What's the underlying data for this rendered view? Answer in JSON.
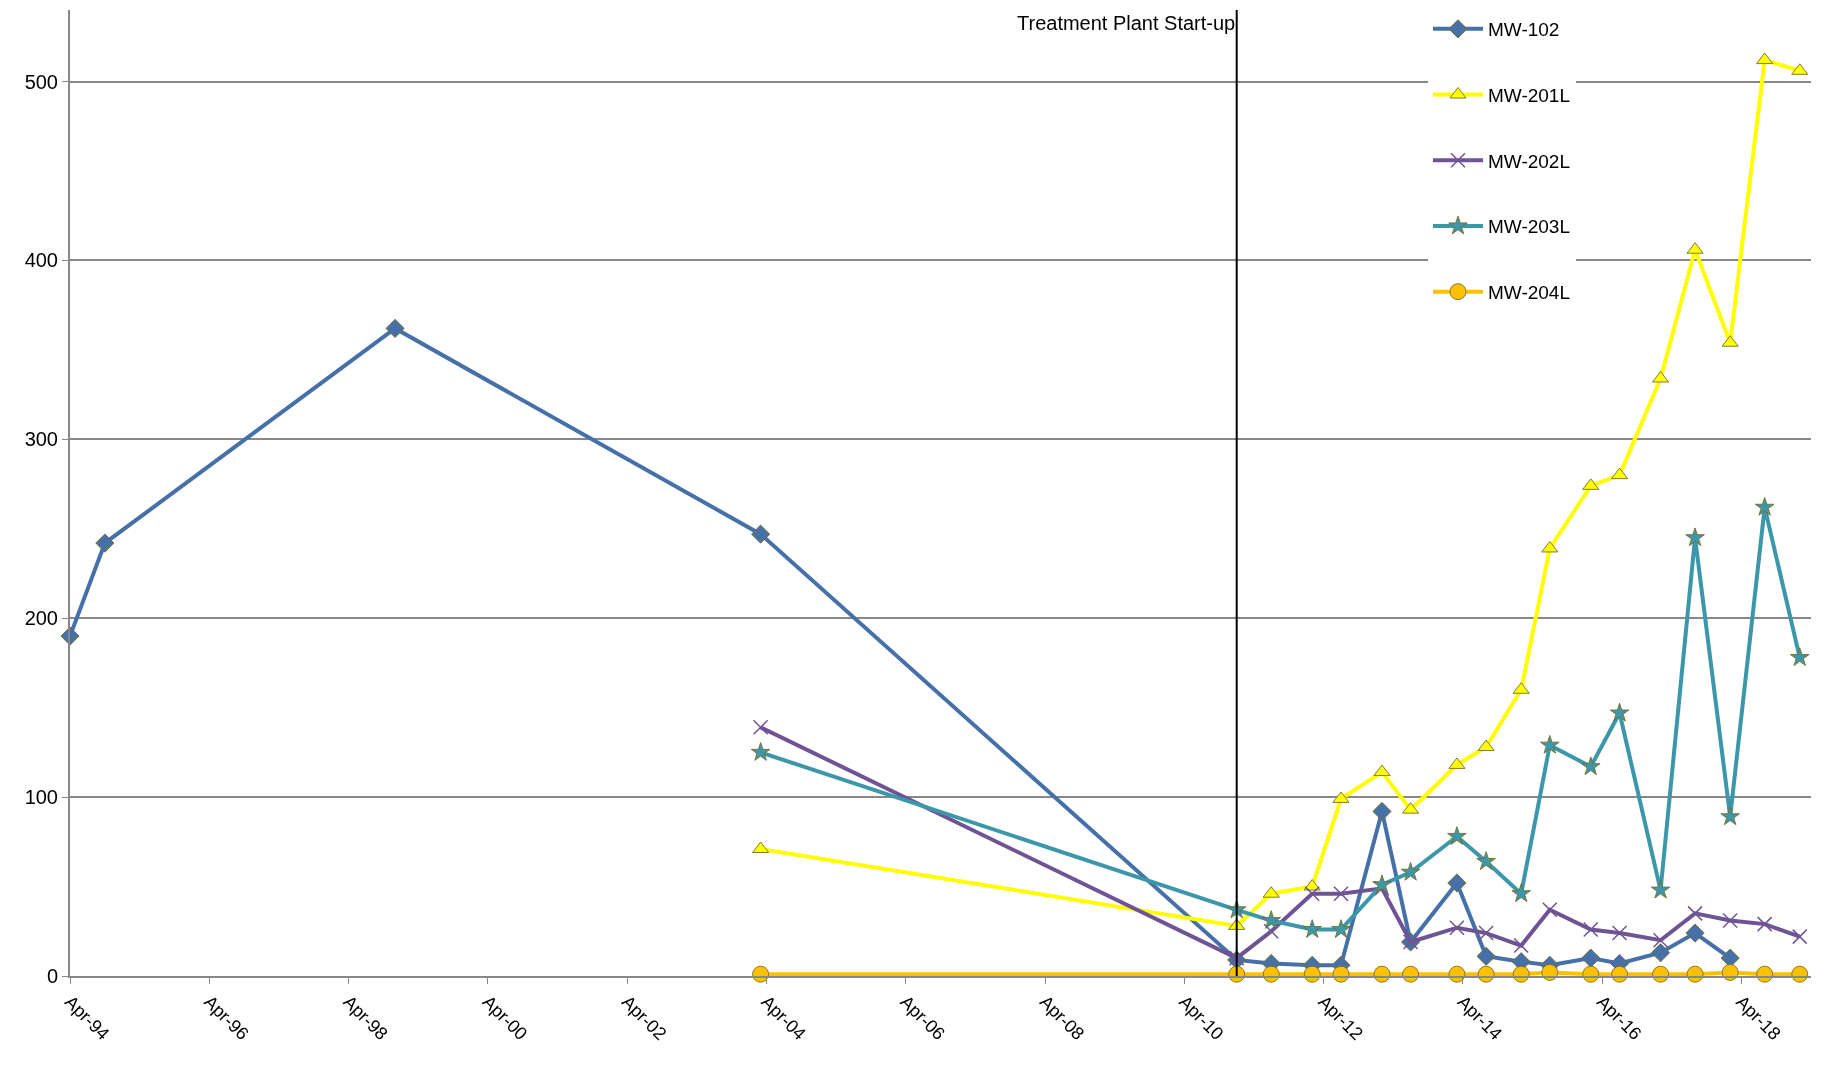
{
  "chart_data": {
    "type": "line",
    "series": [
      {
        "name": "MW-102",
        "color": "#4570a8",
        "marker": "diamond",
        "x": [
          "1994-04",
          "1994-10",
          "1998-12",
          "2004-03",
          "2011-01",
          "2011-07",
          "2012-02",
          "2012-07",
          "2013-02",
          "2013-07",
          "2014-03",
          "2014-08",
          "2015-02",
          "2015-07",
          "2016-02",
          "2016-07",
          "2017-02",
          "2017-08",
          "2018-02"
        ],
        "values": [
          190,
          242,
          362,
          247,
          9,
          7,
          6,
          6,
          92,
          19,
          52,
          11,
          8,
          6,
          10,
          7,
          13,
          24,
          10
        ]
      },
      {
        "name": "MW-201L",
        "color": "#ffff00",
        "marker": "triangle",
        "x": [
          "2004-03",
          "2011-01",
          "2011-07",
          "2012-02",
          "2012-07",
          "2013-02",
          "2013-07",
          "2014-03",
          "2014-08",
          "2015-02",
          "2015-07",
          "2016-02",
          "2016-07",
          "2017-02",
          "2017-08",
          "2018-02",
          "2018-08",
          "2019-02"
        ],
        "values": [
          71,
          28,
          46,
          50,
          99,
          114,
          93,
          118,
          128,
          160,
          239,
          274,
          280,
          334,
          406,
          354,
          512,
          506
        ]
      },
      {
        "name": "MW-202L",
        "color": "#6f5495",
        "marker": "cross",
        "x": [
          "2004-03",
          "2011-01",
          "2011-07",
          "2012-02",
          "2012-07",
          "2013-02",
          "2013-07",
          "2014-03",
          "2014-08",
          "2015-02",
          "2015-07",
          "2016-02",
          "2016-07",
          "2017-02",
          "2017-08",
          "2018-02",
          "2018-08",
          "2019-02"
        ],
        "values": [
          139,
          10,
          25,
          46,
          46,
          49,
          19,
          27,
          24,
          17,
          37,
          26,
          24,
          20,
          35,
          31,
          29,
          22
        ]
      },
      {
        "name": "MW-203L",
        "color": "#3c97ab",
        "marker": "star",
        "x": [
          "2004-03",
          "2011-01",
          "2011-07",
          "2012-02",
          "2012-07",
          "2013-02",
          "2013-07",
          "2014-03",
          "2014-08",
          "2015-02",
          "2015-07",
          "2016-02",
          "2016-07",
          "2017-02",
          "2017-08",
          "2018-02",
          "2018-08",
          "2019-02"
        ],
        "values": [
          125,
          37,
          31,
          26,
          26,
          51,
          58,
          78,
          64,
          46,
          129,
          117,
          147,
          48,
          245,
          89,
          262,
          178
        ]
      },
      {
        "name": "MW-204L",
        "color": "#ffc000",
        "marker": "circle",
        "x": [
          "2004-03",
          "2011-01",
          "2011-07",
          "2012-02",
          "2012-07",
          "2013-02",
          "2013-07",
          "2014-03",
          "2014-08",
          "2015-02",
          "2015-07",
          "2016-02",
          "2016-07",
          "2017-02",
          "2017-08",
          "2018-02",
          "2018-08",
          "2019-02"
        ],
        "values": [
          1,
          1,
          1,
          1,
          1,
          1,
          1,
          1,
          1,
          1,
          2,
          1,
          1,
          1,
          1,
          2,
          1,
          1
        ]
      }
    ],
    "xlim": [
      "1994-04",
      "2019-04"
    ],
    "xticks": [
      {
        "value": "1994-04",
        "label": "Apr-94"
      },
      {
        "value": "1996-04",
        "label": "Apr-96"
      },
      {
        "value": "1998-04",
        "label": "Apr-98"
      },
      {
        "value": "2000-04",
        "label": "Apr-00"
      },
      {
        "value": "2002-04",
        "label": "Apr-02"
      },
      {
        "value": "2004-04",
        "label": "Apr-04"
      },
      {
        "value": "2006-04",
        "label": "Apr-06"
      },
      {
        "value": "2008-04",
        "label": "Apr-08"
      },
      {
        "value": "2010-04",
        "label": "Apr-10"
      },
      {
        "value": "2012-04",
        "label": "Apr-12"
      },
      {
        "value": "2014-04",
        "label": "Apr-14"
      },
      {
        "value": "2016-04",
        "label": "Apr-16"
      },
      {
        "value": "2018-04",
        "label": "Apr-18"
      }
    ],
    "ylim": [
      0,
      540
    ],
    "yticks": [
      0,
      100,
      200,
      300,
      400,
      500
    ],
    "ref_lines": [
      {
        "axis": "x",
        "value": "2011-01",
        "label": "Treatment Plant Start-up",
        "color": "#000000"
      }
    ],
    "grid": "y",
    "legend": "top right"
  }
}
